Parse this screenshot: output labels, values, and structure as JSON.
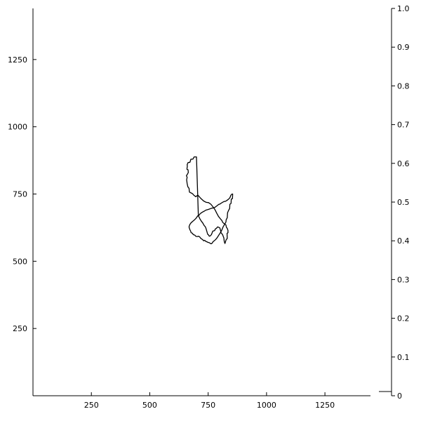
{
  "chart_data": {
    "type": "line",
    "title": "",
    "xlabel": "",
    "ylabel": "",
    "grid": false,
    "legend": "none",
    "xlim": [
      0,
      1445
    ],
    "ylim": [
      0,
      1440
    ],
    "x_ticks": [
      250,
      500,
      750,
      1000,
      1250
    ],
    "y_ticks": [
      250,
      500,
      750,
      1000,
      1250
    ],
    "colorbar": {
      "range": [
        0,
        1
      ],
      "ticks": [
        "0",
        "0.1",
        "0.2",
        "0.3",
        "0.4",
        "0.5",
        "0.6",
        "0.7",
        "0.8",
        "0.9",
        "1.0"
      ]
    },
    "series": [
      {
        "color": "#000000",
        "x": [
          700,
          690,
          685,
          676,
          672,
          664,
          660,
          661,
          659,
          664,
          665,
          660,
          657,
          660,
          658,
          660,
          663,
          668,
          670,
          677,
          683,
          688,
          697,
          706,
          718,
          731,
          742,
          752,
          762,
          770,
          779,
          787,
          794,
          803,
          810,
          811,
          818,
          823,
          826,
          828,
          832,
          835,
          835,
          831,
          832,
          827,
          826,
          822,
          820,
          819,
          818,
          817,
          813,
          812,
          805,
          803,
          800,
          791,
          786,
          780,
          778,
          770,
          764,
          757,
          754,
          752,
          748,
          744,
          741,
          738,
          733,
          728,
          720,
          715,
          712,
          708
        ],
        "y": [
          888,
          888,
          880,
          879,
          868,
          867,
          859,
          854,
          842,
          840,
          830,
          822,
          818,
          812,
          803,
          789,
          777,
          771,
          757,
          754,
          751,
          746,
          740,
          746,
          734,
          724,
          719,
          718,
          712,
          703,
          692,
          678,
          667,
          657,
          650,
          646,
          640,
          637,
          635,
          627,
          622,
          615,
          606,
          604,
          585,
          580,
          578,
          566,
          570,
          574,
          580,
          587,
          596,
          599,
          606,
          615,
          624,
          628,
          623,
          619,
          614,
          612,
          599,
          593,
          594,
          598,
          600,
          612,
          621,
          628,
          633,
          641,
          650,
          657,
          663,
          669
        ]
      },
      {
        "color": "#000000",
        "x": [
          764,
          762,
          758,
          755,
          750,
          743,
          740,
          735,
          731,
          727,
          722,
          719,
          714,
          710,
          703,
          697,
          693,
          686,
          683,
          677,
          675,
          672,
          670,
          668,
          671,
          676,
          683,
          690,
          696,
          701,
          705,
          711,
          716,
          721,
          726,
          733,
          740,
          748,
          755,
          764,
          771,
          778,
          783,
          789,
          795,
          801,
          806,
          811,
          818,
          824,
          830,
          836,
          842,
          845,
          847,
          852,
          855,
          854,
          849,
          848,
          843,
          842,
          838,
          833,
          832,
          827,
          826,
          820,
          814,
          811,
          809,
          806,
          800,
          796,
          791,
          787,
          781,
          776,
          771,
          768
        ],
        "y": [
          565,
          565,
          567,
          569,
          570,
          573,
          574,
          578,
          576,
          580,
          583,
          585,
          590,
          593,
          592,
          593,
          597,
          599,
          604,
          606,
          612,
          617,
          622,
          628,
          636,
          642,
          648,
          653,
          658,
          663,
          669,
          671,
          677,
          680,
          683,
          686,
          690,
          692,
          694,
          697,
          698,
          700,
          703,
          707,
          711,
          713,
          716,
          719,
          722,
          723,
          726,
          730,
          735,
          740,
          745,
          750,
          750,
          733,
          731,
          715,
          712,
          696,
          690,
          680,
          662,
          654,
          646,
          637,
          628,
          622,
          617,
          612,
          603,
          598,
          591,
          586,
          580,
          576,
          573,
          568
        ]
      }
    ]
  }
}
